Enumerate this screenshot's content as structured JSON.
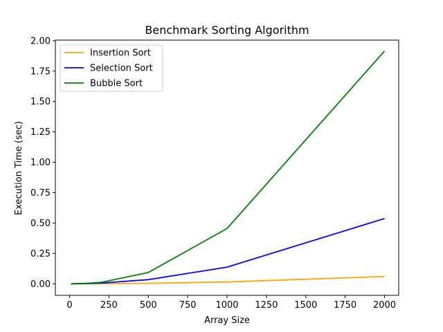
{
  "chart_data": {
    "type": "line",
    "title": "Benchmark Sorting Algorithm",
    "xlabel": "Array Size",
    "ylabel": "Execution Time (sec)",
    "xlim": [
      -90,
      2090
    ],
    "ylim": [
      -0.095,
      2.005
    ],
    "xticks": [
      0,
      250,
      500,
      750,
      1000,
      1250,
      1500,
      1750,
      2000
    ],
    "xtick_labels": [
      "0",
      "250",
      "500",
      "750",
      "1000",
      "1250",
      "1500",
      "1750",
      "2000"
    ],
    "yticks": [
      0,
      0.25,
      0.5,
      0.75,
      1.0,
      1.25,
      1.5,
      1.75,
      2.0
    ],
    "ytick_labels": [
      "0.00",
      "0.25",
      "0.50",
      "0.75",
      "1.00",
      "1.25",
      "1.50",
      "1.75",
      "2.00"
    ],
    "grid": false,
    "legend_position": "top-left",
    "series": [
      {
        "name": "Insertion Sort",
        "color": "#ffa500",
        "x": [
          10,
          100,
          200,
          500,
          1000,
          2000
        ],
        "y": [
          0.0,
          0.0,
          0.001,
          0.004,
          0.015,
          0.06
        ]
      },
      {
        "name": "Selection Sort",
        "color": "#0000ff",
        "x": [
          10,
          100,
          200,
          500,
          1000,
          2000
        ],
        "y": [
          0.0,
          0.002,
          0.006,
          0.034,
          0.137,
          0.537
        ]
      },
      {
        "name": "Bubble Sort",
        "color": "#008000",
        "x": [
          10,
          100,
          200,
          500,
          1000,
          2000
        ],
        "y": [
          0.0,
          0.003,
          0.012,
          0.093,
          0.455,
          1.915
        ]
      }
    ]
  }
}
